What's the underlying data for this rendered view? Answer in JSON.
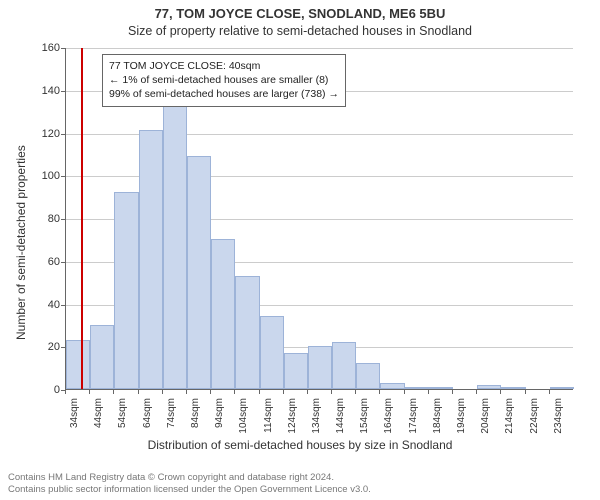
{
  "titles": {
    "main": "77, TOM JOYCE CLOSE, SNODLAND, ME6 5BU",
    "sub": "Size of property relative to semi-detached houses in Snodland"
  },
  "chart": {
    "type": "histogram",
    "ylim": [
      0,
      160
    ],
    "ytick_step": 20,
    "yticks": [
      0,
      20,
      40,
      60,
      80,
      100,
      120,
      140,
      160
    ],
    "ylabel": "Number of semi-detached properties",
    "xlabel": "Distribution of semi-detached houses by size in Snodland",
    "x_categories": [
      "34sqm",
      "44sqm",
      "54sqm",
      "64sqm",
      "74sqm",
      "84sqm",
      "94sqm",
      "104sqm",
      "114sqm",
      "124sqm",
      "134sqm",
      "144sqm",
      "154sqm",
      "164sqm",
      "174sqm",
      "184sqm",
      "194sqm",
      "204sqm",
      "214sqm",
      "224sqm",
      "234sqm"
    ],
    "values": [
      23,
      30,
      92,
      121,
      138,
      109,
      70,
      53,
      34,
      17,
      20,
      22,
      12,
      3,
      1,
      1,
      0,
      2,
      1,
      0,
      1
    ],
    "bar_fill": "#cad7ed",
    "bar_stroke": "#9db3d8",
    "grid_color": "#cccccc",
    "axis_color": "#666666",
    "background_color": "#ffffff",
    "marker": {
      "position_sqm": 40,
      "color": "#cc0000"
    },
    "info_box": {
      "line1": "77 TOM JOYCE CLOSE: 40sqm",
      "line2": "← 1% of semi-detached houses are smaller (8)",
      "line3": "99% of semi-detached houses are larger (738) →"
    }
  },
  "footer": {
    "line1": "Contains HM Land Registry data © Crown copyright and database right 2024.",
    "line2": "Contains public sector information licensed under the Open Government Licence v3.0."
  }
}
